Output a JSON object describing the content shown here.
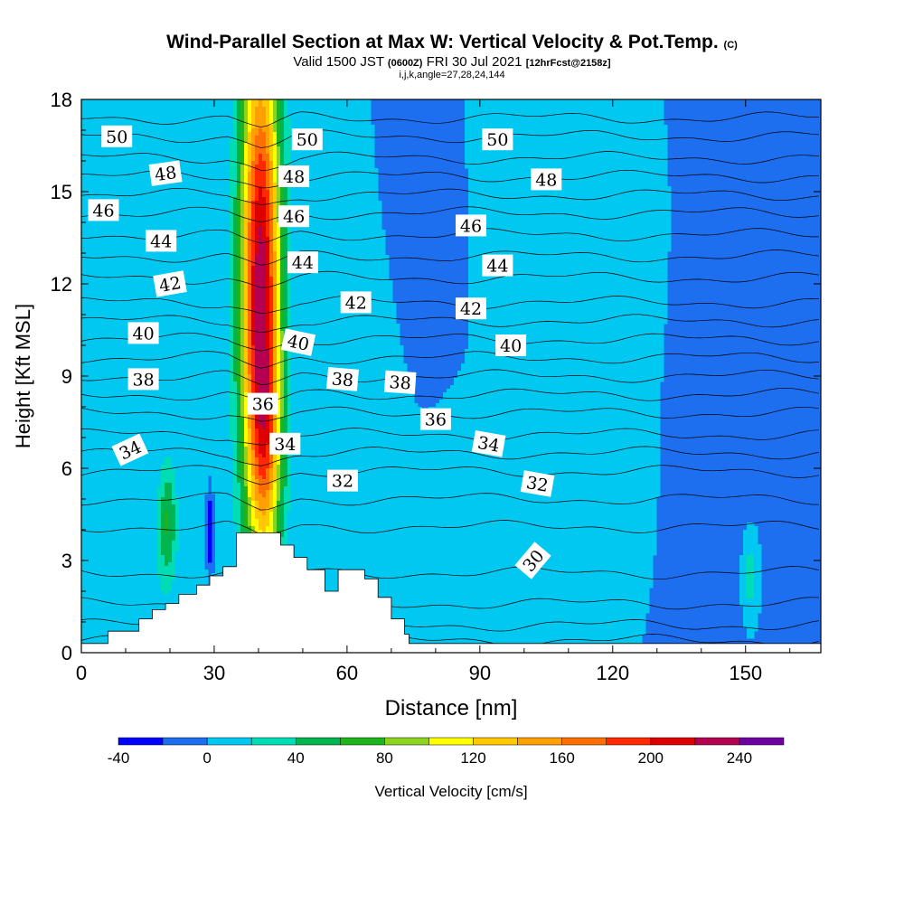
{
  "title": {
    "main": "Wind-Parallel Section at Max W: Vertical Velocity & Pot.Temp.",
    "main_suffix": "(C)",
    "valid_prefix": "Valid 1500 JST",
    "valid_utc": "(0600Z)",
    "valid_date": "FRI 30 Jul 2021",
    "fcst": "[12hrFcst@2158z]",
    "indices": "i,j,k,angle=27,28,24,144"
  },
  "chart_data": {
    "type": "heatmap",
    "xlabel": "Distance [nm]",
    "ylabel": "Height [Kft MSL]",
    "xlim": [
      0,
      167
    ],
    "ylim": [
      0,
      18
    ],
    "x_ticks": [
      0,
      30,
      60,
      90,
      120,
      150
    ],
    "y_ticks": [
      0,
      3,
      6,
      9,
      12,
      15,
      18
    ],
    "colorbar": {
      "label": "Vertical Velocity [cm/s]",
      "range": [
        -40,
        260
      ],
      "step": 20,
      "tick_values": [
        -40,
        0,
        40,
        80,
        120,
        160,
        200,
        240
      ],
      "colors": [
        "#0000ff",
        "#1e6ef0",
        "#00c8f0",
        "#00dcb4",
        "#00b450",
        "#1eb41e",
        "#8cd21e",
        "#ffff00",
        "#ffc800",
        "#ffa000",
        "#ff6e00",
        "#ff2800",
        "#dc0000",
        "#b40050",
        "#6e00a0"
      ]
    },
    "background_color": "#1e6ef0",
    "w_fields": [
      {
        "cx": 40.5,
        "cy": 12.0,
        "sx": 3.2,
        "sy": 6.0,
        "amp": 230
      },
      {
        "cx": 42.0,
        "cy": 6.8,
        "sx": 2.5,
        "sy": 2.5,
        "amp": 60
      },
      {
        "cx": 19.5,
        "cy": 4.3,
        "sx": 1.5,
        "sy": 1.4,
        "amp": 60
      },
      {
        "cx": 151.0,
        "cy": 2.5,
        "sx": 1.0,
        "sy": 0.8,
        "amp": 35
      },
      {
        "cx": 88.0,
        "cy": 2.5,
        "sx": 8.0,
        "sy": 2.5,
        "amp": 15
      },
      {
        "cx": 118.0,
        "cy": 6.5,
        "sx": 8.0,
        "sy": 3.0,
        "amp": 13
      },
      {
        "cx": 12.0,
        "cy": 2.0,
        "sx": 7.0,
        "sy": 1.8,
        "amp": 12
      },
      {
        "cx": 64.0,
        "cy": 9.0,
        "sx": 5.0,
        "sy": 4.0,
        "amp": 12
      },
      {
        "cx": 128.0,
        "cy": 13.0,
        "sx": 4.0,
        "sy": 3.0,
        "amp": 10
      },
      {
        "cx": 100.0,
        "cy": 15.0,
        "sx": 6.0,
        "sy": 3.0,
        "amp": 10
      },
      {
        "cx": 28.0,
        "cy": 10.0,
        "sx": 3.0,
        "sy": 3.0,
        "amp": 6
      },
      {
        "cx": 29.0,
        "cy": 4.0,
        "sx": 0.4,
        "sy": 0.7,
        "amp": -60
      },
      {
        "cx": 140.0,
        "cy": 9.0,
        "sx": 8.0,
        "sy": 6.0,
        "amp": -10
      },
      {
        "cx": 75.0,
        "cy": 14.0,
        "sx": 6.0,
        "sy": 3.0,
        "amp": -8
      }
    ],
    "terrain": {
      "x": [
        0,
        6,
        6,
        13,
        13,
        16,
        16,
        19,
        19,
        22,
        22,
        26,
        26,
        29,
        29,
        32,
        32,
        35,
        35,
        45,
        45,
        48,
        48,
        51,
        51,
        55,
        55,
        58,
        58,
        64,
        64,
        67,
        67,
        70,
        70,
        73,
        73,
        74,
        74,
        167
      ],
      "y": [
        0.3,
        0.3,
        0.7,
        0.7,
        1.1,
        1.1,
        1.4,
        1.4,
        1.6,
        1.6,
        1.9,
        1.9,
        2.2,
        2.2,
        2.5,
        2.5,
        2.8,
        2.8,
        3.9,
        3.9,
        3.5,
        3.5,
        3.1,
        3.1,
        2.7,
        2.7,
        2.0,
        2.0,
        2.7,
        2.7,
        2.4,
        2.4,
        1.8,
        1.8,
        1.1,
        1.1,
        0.6,
        0.6,
        0.3,
        0.3
      ]
    },
    "potential_temperature": {
      "units": "C",
      "levels": [
        {
          "v": 27,
          "y": 0.4
        },
        {
          "v": 28,
          "y": 0.9
        },
        {
          "v": 29,
          "y": 1.6
        },
        {
          "v": 30,
          "y": 2.6
        },
        {
          "v": 31,
          "y": 4.1
        },
        {
          "v": 32,
          "y": 5.0
        },
        {
          "v": 33,
          "y": 5.9
        },
        {
          "v": 34,
          "y": 6.5
        },
        {
          "v": 35,
          "y": 7.1
        },
        {
          "v": 36,
          "y": 7.8
        },
        {
          "v": 37,
          "y": 8.4
        },
        {
          "v": 38,
          "y": 9.0
        },
        {
          "v": 39,
          "y": 9.6
        },
        {
          "v": 40,
          "y": 10.2
        },
        {
          "v": 41,
          "y": 10.8
        },
        {
          "v": 42,
          "y": 11.4
        },
        {
          "v": 43,
          "y": 12.2
        },
        {
          "v": 44,
          "y": 12.9
        },
        {
          "v": 45,
          "y": 13.6
        },
        {
          "v": 46,
          "y": 14.3
        },
        {
          "v": 47,
          "y": 14.9
        },
        {
          "v": 48,
          "y": 15.5
        },
        {
          "v": 49,
          "y": 16.1
        },
        {
          "v": 50,
          "y": 16.8
        },
        {
          "v": 51,
          "y": 17.4
        }
      ],
      "labels": [
        {
          "text": "50",
          "x": 8,
          "y": 16.8,
          "angle": 0
        },
        {
          "text": "50",
          "x": 51,
          "y": 16.7,
          "angle": 0
        },
        {
          "text": "50",
          "x": 94,
          "y": 16.7,
          "angle": 0
        },
        {
          "text": "48",
          "x": 19,
          "y": 15.6,
          "angle": -8
        },
        {
          "text": "48",
          "x": 48,
          "y": 15.5,
          "angle": 0
        },
        {
          "text": "48",
          "x": 105,
          "y": 15.4,
          "angle": 0
        },
        {
          "text": "46",
          "x": 5,
          "y": 14.4,
          "angle": 0
        },
        {
          "text": "46",
          "x": 48,
          "y": 14.2,
          "angle": 0
        },
        {
          "text": "46",
          "x": 88,
          "y": 13.9,
          "angle": 0
        },
        {
          "text": "44",
          "x": 18,
          "y": 13.4,
          "angle": 0
        },
        {
          "text": "44",
          "x": 50,
          "y": 12.7,
          "angle": 0
        },
        {
          "text": "44",
          "x": 94,
          "y": 12.6,
          "angle": 0
        },
        {
          "text": "42",
          "x": 20,
          "y": 12.0,
          "angle": -10
        },
        {
          "text": "42",
          "x": 62,
          "y": 11.4,
          "angle": 0
        },
        {
          "text": "42",
          "x": 88,
          "y": 11.2,
          "angle": 0
        },
        {
          "text": "40",
          "x": 14,
          "y": 10.4,
          "angle": 0
        },
        {
          "text": "40",
          "x": 49,
          "y": 10.1,
          "angle": 12
        },
        {
          "text": "40",
          "x": 97,
          "y": 10.0,
          "angle": 0
        },
        {
          "text": "38",
          "x": 14,
          "y": 8.9,
          "angle": 0
        },
        {
          "text": "38",
          "x": 59,
          "y": 8.9,
          "angle": 5
        },
        {
          "text": "38",
          "x": 72,
          "y": 8.8,
          "angle": 4
        },
        {
          "text": "36",
          "x": 41,
          "y": 8.1,
          "angle": 0
        },
        {
          "text": "36",
          "x": 80,
          "y": 7.6,
          "angle": 0
        },
        {
          "text": "34",
          "x": 11,
          "y": 6.6,
          "angle": -25
        },
        {
          "text": "34",
          "x": 46,
          "y": 6.8,
          "angle": 0
        },
        {
          "text": "34",
          "x": 92,
          "y": 6.8,
          "angle": 10
        },
        {
          "text": "32",
          "x": 59,
          "y": 5.6,
          "angle": 0
        },
        {
          "text": "32",
          "x": 103,
          "y": 5.5,
          "angle": 10
        },
        {
          "text": "30",
          "x": 102,
          "y": 3.0,
          "angle": -50
        }
      ]
    }
  }
}
